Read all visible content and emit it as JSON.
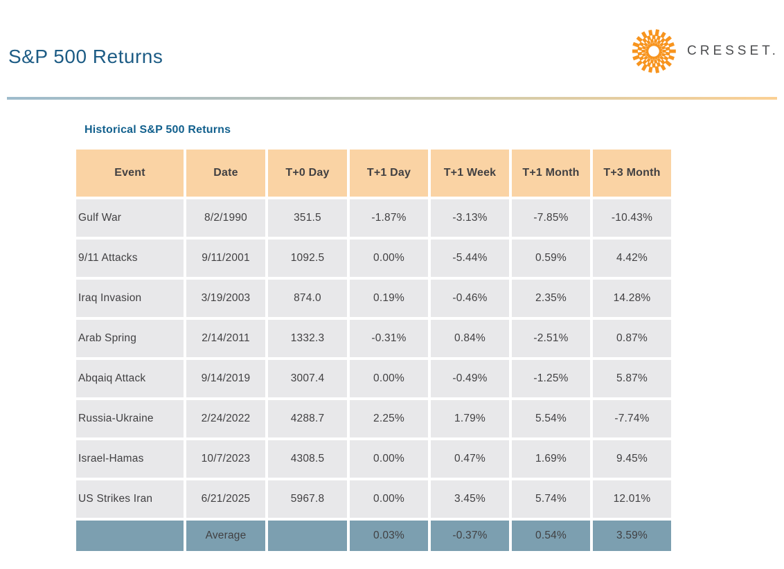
{
  "page_title": "S&P 500 Returns",
  "logo": {
    "brand": "CRESSET.",
    "icon": "sunburst-icon",
    "accent_color": "#F7941E",
    "brand_text_color": "#4D4E50"
  },
  "colors": {
    "title_blue": "#1D5C85",
    "subtitle_blue": "#12608D",
    "header_bg": "#FAD3A4",
    "row_bg": "#E8E8EA",
    "average_row_bg": "#7C9FB0",
    "body_text": "#414042",
    "divider_gradient_left": "#9EBCCC",
    "divider_gradient_right": "#FBD094"
  },
  "chart_data": {
    "type": "table",
    "title": "Historical S&P 500 Returns",
    "columns": [
      "Event",
      "Date",
      "T+0 Day",
      "T+1 Day",
      "T+1 Week",
      "T+1 Month",
      "T+3 Month"
    ],
    "rows": [
      [
        "Gulf War",
        "8/2/1990",
        "351.5",
        "-1.87%",
        "-3.13%",
        "-7.85%",
        "-10.43%"
      ],
      [
        "9/11 Attacks",
        "9/11/2001",
        "1092.5",
        "0.00%",
        "-5.44%",
        "0.59%",
        "4.42%"
      ],
      [
        "Iraq Invasion",
        "3/19/2003",
        "874.0",
        "0.19%",
        "-0.46%",
        "2.35%",
        "14.28%"
      ],
      [
        "Arab Spring",
        "2/14/2011",
        "1332.3",
        "-0.31%",
        "0.84%",
        "-2.51%",
        "0.87%"
      ],
      [
        "Abqaiq Attack",
        "9/14/2019",
        "3007.4",
        "0.00%",
        "-0.49%",
        "-1.25%",
        "5.87%"
      ],
      [
        "Russia-Ukraine",
        "2/24/2022",
        "4288.7",
        "2.25%",
        "1.79%",
        "5.54%",
        "-7.74%"
      ],
      [
        "Israel-Hamas",
        "10/7/2023",
        "4308.5",
        "0.00%",
        "0.47%",
        "1.69%",
        "9.45%"
      ],
      [
        "US Strikes Iran",
        "6/21/2025",
        "5967.8",
        "0.00%",
        "3.45%",
        "5.74%",
        "12.01%"
      ]
    ],
    "footer_row": [
      "",
      "Average",
      "",
      "0.03%",
      "-0.37%",
      "0.54%",
      "3.59%"
    ]
  }
}
